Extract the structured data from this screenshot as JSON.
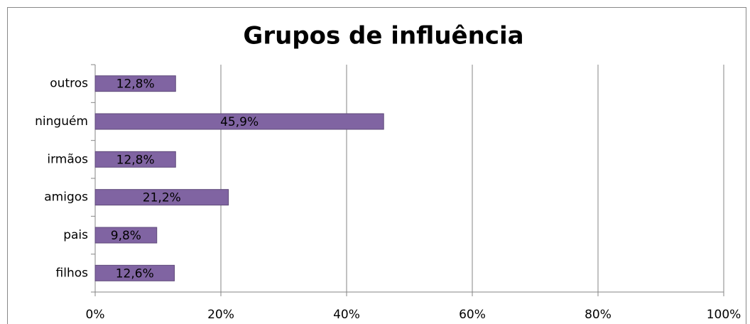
{
  "chart_data": {
    "type": "bar",
    "orientation": "horizontal",
    "title": "Grupos de influência",
    "categories": [
      "outros",
      "ninguém",
      "irmãos",
      "amigos",
      "pais",
      "filhos"
    ],
    "values": [
      12.8,
      45.9,
      12.8,
      21.2,
      9.8,
      12.6
    ],
    "value_labels": [
      "12,8%",
      "45,9%",
      "12,8%",
      "21,2%",
      "9,8%",
      "12,6%"
    ],
    "color": "#8064a2",
    "xlim": [
      0,
      100
    ],
    "xticks": [
      {
        "value": 0,
        "label": "0%"
      },
      {
        "value": 20,
        "label": "20%"
      },
      {
        "value": 40,
        "label": "40%"
      },
      {
        "value": 60,
        "label": "60%"
      },
      {
        "value": 80,
        "label": "80%"
      },
      {
        "value": 100,
        "label": "100%"
      }
    ],
    "grid": true
  }
}
